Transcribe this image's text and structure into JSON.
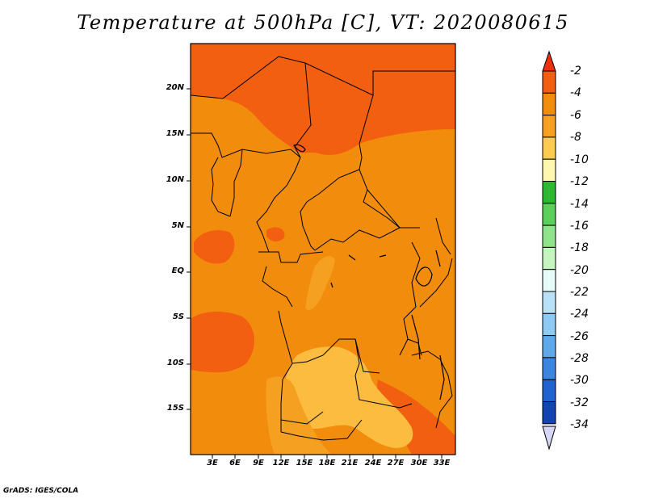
{
  "title": "Temperature at 500hPa [C], VT: 2020080615",
  "credit": "GrADS: IGES/COLA",
  "map": {
    "lat_labels": [
      "20N",
      "15N",
      "10N",
      "5N",
      "EQ",
      "5S",
      "10S",
      "15S"
    ],
    "lon_labels": [
      "3E",
      "6E",
      "9E",
      "12E",
      "15E",
      "18E",
      "21E",
      "24E",
      "27E",
      "30E",
      "33E"
    ],
    "fill_colors": {
      "dark_orange": "#f25f10",
      "orange": "#f28c0c",
      "mid_orange": "#f5a020",
      "light_orange": "#fbbc40"
    }
  },
  "colorbar": {
    "labels": [
      "-2",
      "-4",
      "-6",
      "-8",
      "-10",
      "-12",
      "-14",
      "-16",
      "-18",
      "-20",
      "-22",
      "-24",
      "-26",
      "-28",
      "-30",
      "-32",
      "-34"
    ],
    "colors": [
      "#f0300a",
      "#f25f10",
      "#f28c0c",
      "#f5a020",
      "#fbcb52",
      "#fff6b0",
      "#2eb832",
      "#5bd15c",
      "#8fe48c",
      "#c6f5c0",
      "#e4fbf8",
      "#b9e2f8",
      "#8dcbf4",
      "#5ea9ec",
      "#3c86e0",
      "#2063cf",
      "#1245b2",
      "#0a1f7a",
      "#d6d6f6"
    ]
  }
}
